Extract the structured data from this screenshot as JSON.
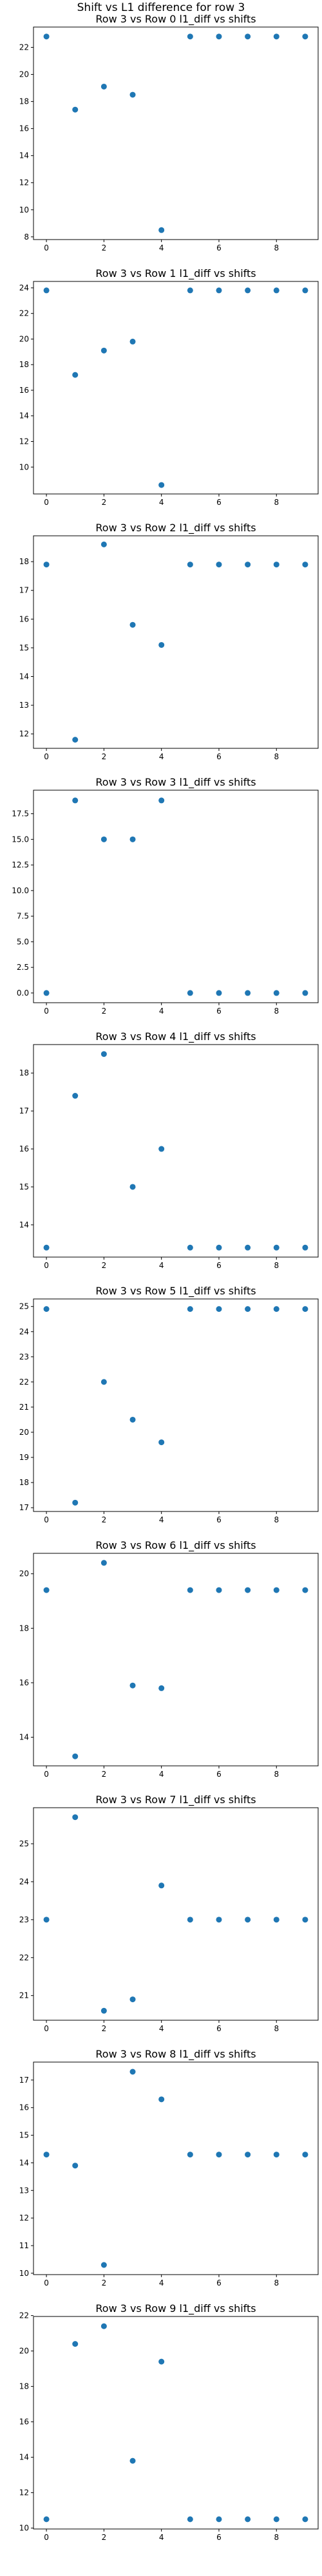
{
  "figure": {
    "suptitle": "Shift vs L1 difference for row 3"
  },
  "chart_data": [
    {
      "type": "scatter",
      "title": "Row 3 vs Row 0 l1_diff vs shifts",
      "x": [
        0,
        1,
        2,
        3,
        4,
        5,
        6,
        7,
        8,
        9
      ],
      "y": [
        22.8,
        17.4,
        19.1,
        18.5,
        8.5,
        22.8,
        22.8,
        22.8,
        22.8,
        22.8
      ],
      "xlim": [
        -0.45,
        9.45
      ],
      "ylim": [
        7.8,
        23.5
      ],
      "xticks": [
        0,
        2,
        4,
        6,
        8
      ],
      "yticks": [
        8,
        10,
        12,
        14,
        16,
        18,
        20,
        22
      ],
      "yfmt": 0,
      "color": "#1f77b4",
      "grid": false
    },
    {
      "type": "scatter",
      "title": "Row 3 vs Row 1 l1_diff vs shifts",
      "x": [
        0,
        1,
        2,
        3,
        4,
        5,
        6,
        7,
        8,
        9
      ],
      "y": [
        23.8,
        17.2,
        19.1,
        19.8,
        8.6,
        23.8,
        23.8,
        23.8,
        23.8,
        23.8
      ],
      "xlim": [
        -0.45,
        9.45
      ],
      "ylim": [
        7.9,
        24.5
      ],
      "xticks": [
        0,
        2,
        4,
        6,
        8
      ],
      "yticks": [
        10,
        12,
        14,
        16,
        18,
        20,
        22,
        24
      ],
      "yfmt": 0,
      "color": "#1f77b4",
      "grid": false
    },
    {
      "type": "scatter",
      "title": "Row 3 vs Row 2 l1_diff vs shifts",
      "x": [
        0,
        1,
        2,
        3,
        4,
        5,
        6,
        7,
        8,
        9
      ],
      "y": [
        17.9,
        11.8,
        18.6,
        15.8,
        15.1,
        17.9,
        17.9,
        17.9,
        17.9,
        17.9
      ],
      "xlim": [
        -0.45,
        9.45
      ],
      "ylim": [
        11.5,
        18.9
      ],
      "xticks": [
        0,
        2,
        4,
        6,
        8
      ],
      "yticks": [
        12,
        13,
        14,
        15,
        16,
        17,
        18
      ],
      "yfmt": 0,
      "color": "#1f77b4",
      "grid": false
    },
    {
      "type": "scatter",
      "title": "Row 3 vs Row 3 l1_diff vs shifts",
      "x": [
        0,
        1,
        2,
        3,
        4,
        5,
        6,
        7,
        8,
        9
      ],
      "y": [
        0.0,
        18.8,
        15.0,
        15.0,
        18.8,
        0.0,
        0.0,
        0.0,
        0.0,
        0.0
      ],
      "xlim": [
        -0.45,
        9.45
      ],
      "ylim": [
        -0.95,
        19.8
      ],
      "xticks": [
        0,
        2,
        4,
        6,
        8
      ],
      "yticks": [
        0.0,
        2.5,
        5.0,
        7.5,
        10.0,
        12.5,
        15.0,
        17.5
      ],
      "yfmt": 1,
      "color": "#1f77b4",
      "grid": false
    },
    {
      "type": "scatter",
      "title": "Row 3 vs Row 4 l1_diff vs shifts",
      "x": [
        0,
        1,
        2,
        3,
        4,
        5,
        6,
        7,
        8,
        9
      ],
      "y": [
        13.4,
        17.4,
        18.5,
        15.0,
        16.0,
        13.4,
        13.4,
        13.4,
        13.4,
        13.4
      ],
      "xlim": [
        -0.45,
        9.45
      ],
      "ylim": [
        13.15,
        18.75
      ],
      "xticks": [
        0,
        2,
        4,
        6,
        8
      ],
      "yticks": [
        14,
        15,
        16,
        17,
        18
      ],
      "yfmt": 0,
      "color": "#1f77b4",
      "grid": false
    },
    {
      "type": "scatter",
      "title": "Row 3 vs Row 5 l1_diff vs shifts",
      "x": [
        0,
        1,
        2,
        3,
        4,
        5,
        6,
        7,
        8,
        9
      ],
      "y": [
        24.9,
        17.2,
        22.0,
        20.5,
        19.6,
        24.9,
        24.9,
        24.9,
        24.9,
        24.9
      ],
      "xlim": [
        -0.45,
        9.45
      ],
      "ylim": [
        16.85,
        25.3
      ],
      "xticks": [
        0,
        2,
        4,
        6,
        8
      ],
      "yticks": [
        17,
        18,
        19,
        20,
        21,
        22,
        23,
        24,
        25
      ],
      "yfmt": 0,
      "color": "#1f77b4",
      "grid": false
    },
    {
      "type": "scatter",
      "title": "Row 3 vs Row 6 l1_diff vs shifts",
      "x": [
        0,
        1,
        2,
        3,
        4,
        5,
        6,
        7,
        8,
        9
      ],
      "y": [
        19.4,
        13.3,
        20.4,
        15.9,
        15.8,
        19.4,
        19.4,
        19.4,
        19.4,
        19.4
      ],
      "xlim": [
        -0.45,
        9.45
      ],
      "ylim": [
        12.95,
        20.75
      ],
      "xticks": [
        0,
        2,
        4,
        6,
        8
      ],
      "yticks": [
        14,
        16,
        18,
        20
      ],
      "yfmt": 0,
      "color": "#1f77b4",
      "grid": false
    },
    {
      "type": "scatter",
      "title": "Row 3 vs Row 7 l1_diff vs shifts",
      "x": [
        0,
        1,
        2,
        3,
        4,
        5,
        6,
        7,
        8,
        9
      ],
      "y": [
        23.0,
        25.7,
        20.6,
        20.9,
        23.9,
        23.0,
        23.0,
        23.0,
        23.0,
        23.0
      ],
      "xlim": [
        -0.45,
        9.45
      ],
      "ylim": [
        20.35,
        25.95
      ],
      "xticks": [
        0,
        2,
        4,
        6,
        8
      ],
      "yticks": [
        21,
        22,
        23,
        24,
        25
      ],
      "yfmt": 0,
      "color": "#1f77b4",
      "grid": false
    },
    {
      "type": "scatter",
      "title": "Row 3 vs Row 8 l1_diff vs shifts",
      "x": [
        0,
        1,
        2,
        3,
        4,
        5,
        6,
        7,
        8,
        9
      ],
      "y": [
        14.3,
        13.9,
        10.3,
        17.3,
        16.3,
        14.3,
        14.3,
        14.3,
        14.3,
        14.3
      ],
      "xlim": [
        -0.45,
        9.45
      ],
      "ylim": [
        9.95,
        17.65
      ],
      "xticks": [
        0,
        2,
        4,
        6,
        8
      ],
      "yticks": [
        10,
        11,
        12,
        13,
        14,
        15,
        16,
        17
      ],
      "yfmt": 0,
      "color": "#1f77b4",
      "grid": false
    },
    {
      "type": "scatter",
      "title": "Row 3 vs Row 9 l1_diff vs shifts",
      "x": [
        0,
        1,
        2,
        3,
        4,
        5,
        6,
        7,
        8,
        9
      ],
      "y": [
        10.5,
        20.4,
        21.4,
        13.8,
        19.4,
        10.5,
        10.5,
        10.5,
        10.5,
        10.5
      ],
      "xlim": [
        -0.45,
        9.45
      ],
      "ylim": [
        9.95,
        21.95
      ],
      "xticks": [
        0,
        2,
        4,
        6,
        8
      ],
      "yticks": [
        10,
        12,
        14,
        16,
        18,
        20,
        22
      ],
      "yfmt": 0,
      "color": "#1f77b4",
      "grid": false
    }
  ]
}
